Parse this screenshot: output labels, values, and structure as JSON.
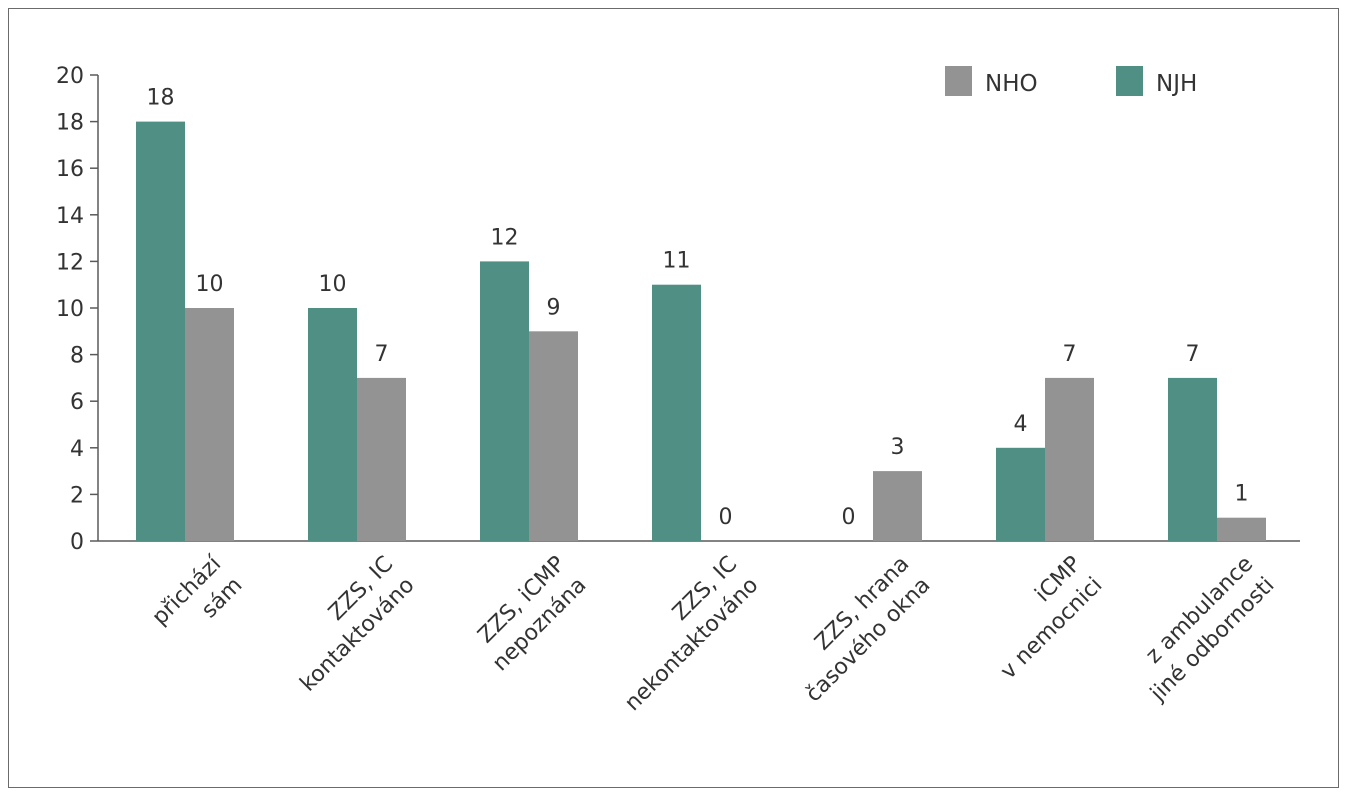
{
  "chart_data": {
    "type": "bar",
    "categories": [
      [
        "přichází",
        "sám"
      ],
      [
        "ZZS, IC",
        "kontaktováno"
      ],
      [
        "ZZS, iCMP",
        "nepoznána"
      ],
      [
        "ZZS, IC",
        "nekontaktováno"
      ],
      [
        "ZZS, hrana",
        "časového okna"
      ],
      [
        "iCMP",
        "v nemocnici"
      ],
      [
        "z ambulance",
        "jiné odbornosti"
      ]
    ],
    "series": [
      {
        "name": "NJH",
        "color": "#4f8f84",
        "values": [
          18,
          10,
          12,
          11,
          0,
          4,
          7
        ]
      },
      {
        "name": "NHO",
        "color": "#939393",
        "values": [
          10,
          7,
          9,
          0,
          3,
          7,
          1
        ]
      }
    ],
    "ylim": [
      0,
      20
    ],
    "yticks": [
      0,
      2,
      4,
      6,
      8,
      10,
      12,
      14,
      16,
      18,
      20
    ],
    "legend": {
      "placement": "top-right",
      "order": [
        "NHO",
        "NJH"
      ]
    },
    "grid": false
  }
}
